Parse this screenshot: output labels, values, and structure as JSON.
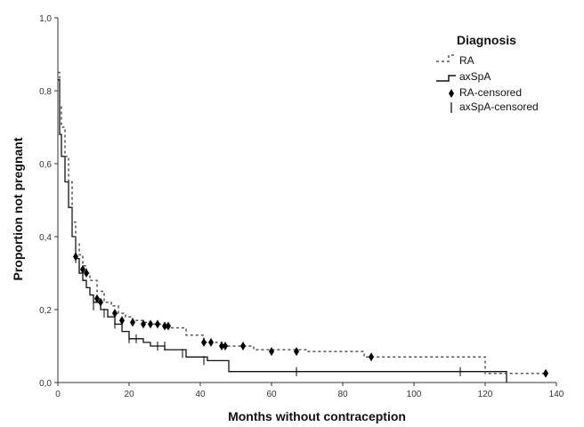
{
  "chart_data": {
    "type": "line",
    "subtype": "kaplan-meier step",
    "title": "",
    "xlabel": "Months without contraception",
    "ylabel": "Proportion not pregnant",
    "xlim": [
      0,
      140
    ],
    "ylim": [
      0,
      1
    ],
    "x_ticks": [
      "0",
      "20",
      "40",
      "60",
      "80",
      "100",
      "120",
      "140"
    ],
    "y_ticks": [
      "0,0",
      "0,2",
      "0,4",
      "0,6",
      "0,8",
      "1,0"
    ],
    "grid": false,
    "legend": {
      "title": "Diagnosis",
      "placement": "top-right",
      "entries": [
        "RA",
        "axSpA",
        "RA-censored",
        "axSpA-censored"
      ]
    },
    "colors": {
      "ra": "#555555",
      "axspa": "#111111"
    },
    "series": [
      {
        "name": "RA",
        "style": "dashed",
        "points": [
          [
            0,
            0.85
          ],
          [
            0.5,
            0.76
          ],
          [
            1,
            0.7
          ],
          [
            2,
            0.62
          ],
          [
            3,
            0.55
          ],
          [
            4,
            0.44
          ],
          [
            5,
            0.38
          ],
          [
            6,
            0.35
          ],
          [
            7,
            0.32
          ],
          [
            8,
            0.3
          ],
          [
            9,
            0.28
          ],
          [
            11,
            0.25
          ],
          [
            13,
            0.22
          ],
          [
            15,
            0.21
          ],
          [
            17,
            0.19
          ],
          [
            19,
            0.18
          ],
          [
            21,
            0.17
          ],
          [
            24,
            0.165
          ],
          [
            27,
            0.16
          ],
          [
            30,
            0.15
          ],
          [
            36,
            0.13
          ],
          [
            41,
            0.11
          ],
          [
            46,
            0.1
          ],
          [
            55,
            0.09
          ],
          [
            70,
            0.085
          ],
          [
            86,
            0.07
          ],
          [
            120,
            0.025
          ],
          [
            137,
            0.025
          ]
        ]
      },
      {
        "name": "axSpA",
        "style": "solid",
        "points": [
          [
            0,
            0.83
          ],
          [
            0.5,
            0.68
          ],
          [
            1,
            0.62
          ],
          [
            2,
            0.55
          ],
          [
            3,
            0.48
          ],
          [
            4,
            0.4
          ],
          [
            5,
            0.34
          ],
          [
            6,
            0.3
          ],
          [
            7,
            0.28
          ],
          [
            8,
            0.26
          ],
          [
            9,
            0.24
          ],
          [
            10,
            0.22
          ],
          [
            12,
            0.2
          ],
          [
            14,
            0.18
          ],
          [
            16,
            0.16
          ],
          [
            18,
            0.14
          ],
          [
            20,
            0.12
          ],
          [
            24,
            0.11
          ],
          [
            26,
            0.1
          ],
          [
            30,
            0.09
          ],
          [
            36,
            0.07
          ],
          [
            42,
            0.06
          ],
          [
            48,
            0.03
          ],
          [
            85,
            0.03
          ],
          [
            126,
            0.0
          ]
        ]
      }
    ],
    "censored": {
      "RA": [
        [
          5,
          0.345
        ],
        [
          7,
          0.31
        ],
        [
          8,
          0.3
        ],
        [
          11,
          0.23
        ],
        [
          12,
          0.22
        ],
        [
          16,
          0.19
        ],
        [
          18,
          0.17
        ],
        [
          21,
          0.165
        ],
        [
          24,
          0.16
        ],
        [
          26,
          0.16
        ],
        [
          28,
          0.16
        ],
        [
          30,
          0.155
        ],
        [
          31,
          0.155
        ],
        [
          41,
          0.11
        ],
        [
          43,
          0.11
        ],
        [
          46,
          0.1
        ],
        [
          47,
          0.1
        ],
        [
          52,
          0.1
        ],
        [
          60,
          0.085
        ],
        [
          67,
          0.085
        ],
        [
          88,
          0.07
        ],
        [
          137,
          0.025
        ]
      ],
      "axSpA": [
        [
          5,
          0.34
        ],
        [
          6,
          0.31
        ],
        [
          10,
          0.21
        ],
        [
          13,
          0.19
        ],
        [
          16,
          0.16
        ],
        [
          20,
          0.12
        ],
        [
          22,
          0.12
        ],
        [
          28,
          0.1
        ],
        [
          30,
          0.1
        ],
        [
          35,
          0.08
        ],
        [
          41,
          0.06
        ],
        [
          67,
          0.03
        ],
        [
          113,
          0.03
        ]
      ]
    }
  }
}
